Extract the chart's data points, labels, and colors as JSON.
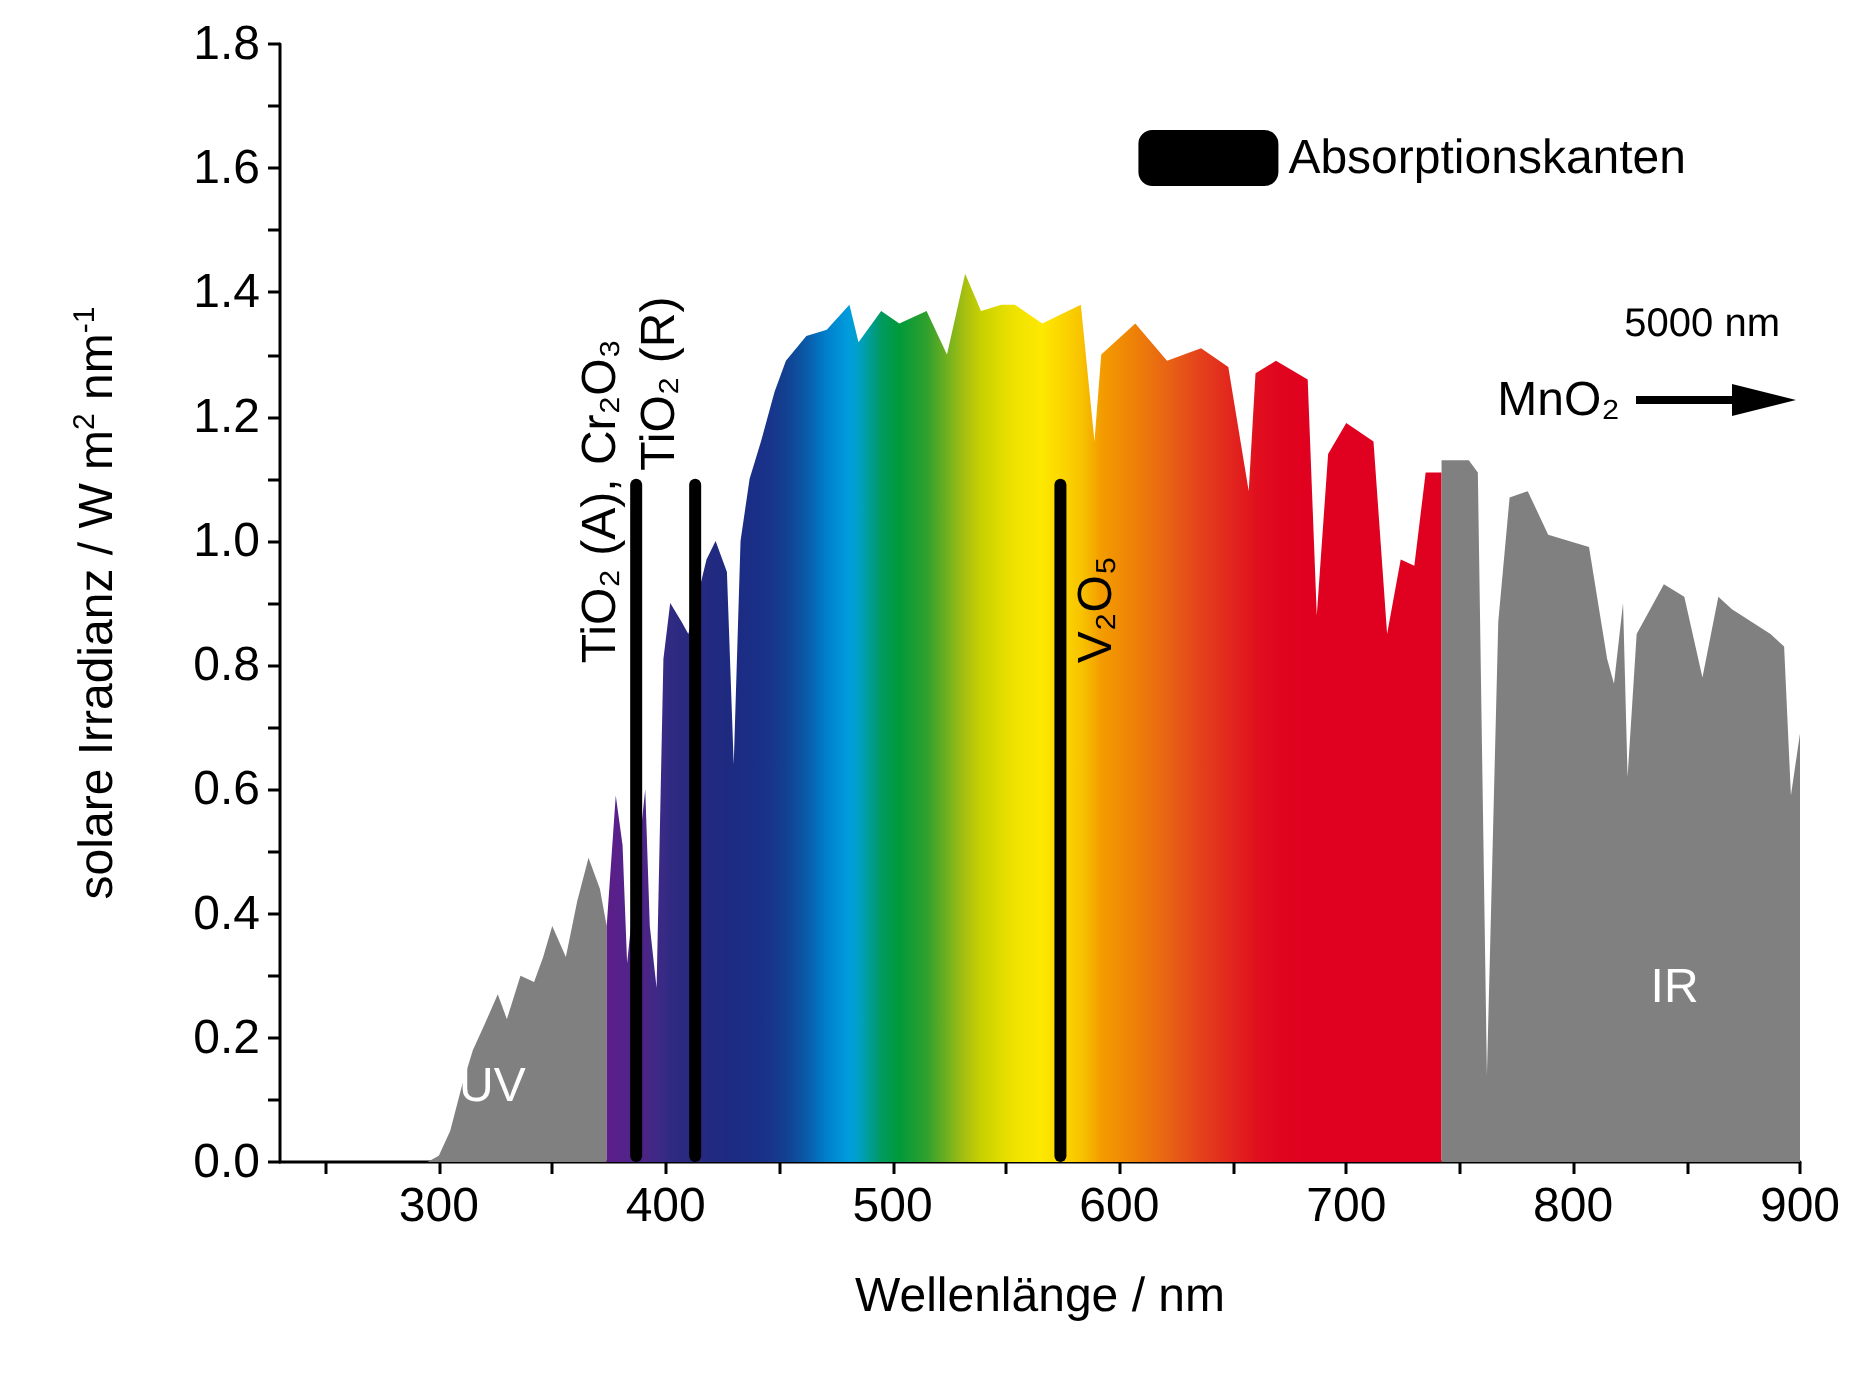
{
  "chart_data": {
    "type": "area",
    "xlabel": "Wellenlänge / nm",
    "ylabel": "solare Irradianz / W m$^{2}$ nm$^{-1}$",
    "xlim": [
      230,
      900
    ],
    "xticks": [
      {
        "value": 250,
        "label": null
      },
      300,
      {
        "value": 350,
        "label": null
      },
      400,
      {
        "value": 450,
        "label": null
      },
      500,
      {
        "value": 550,
        "label": null
      },
      600,
      {
        "value": 650,
        "label": null
      },
      700,
      {
        "value": 750,
        "label": null
      },
      800,
      {
        "value": 850,
        "label": null
      },
      900
    ],
    "ylim": [
      0,
      1.8
    ],
    "yticks": [
      {
        "value": 0,
        "label": "0.0"
      },
      {
        "value": 0.1,
        "label": null
      },
      0.2,
      {
        "value": 0.3,
        "label": null
      },
      0.4,
      {
        "value": 0.5,
        "label": null
      },
      0.6,
      {
        "value": 0.7,
        "label": null
      },
      0.8,
      {
        "value": 0.9,
        "label": null
      },
      {
        "value": 1,
        "label": "1.0"
      },
      {
        "value": 1.1,
        "label": null
      },
      1.2,
      {
        "value": 1.3,
        "label": null
      },
      1.4,
      {
        "value": 1.5,
        "label": null
      },
      1.6,
      {
        "value": 1.7,
        "label": null
      },
      1.8
    ],
    "legend": "top right",
    "series": [
      {
        "name": "UV",
        "color": "#808080",
        "x": [
          230,
          295,
          300,
          305,
          310,
          315,
          320,
          326,
          330,
          336,
          342,
          346,
          350,
          356,
          361,
          366,
          371,
          374
        ],
        "values": [
          0,
          0,
          0.01,
          0.05,
          0.12,
          0.18,
          0.22,
          0.27,
          0.23,
          0.3,
          0.29,
          0.33,
          0.38,
          0.33,
          0.42,
          0.49,
          0.44,
          0.38
        ]
      },
      {
        "x": [
          374,
          378,
          381,
          383,
          391,
          393,
          396,
          399,
          402,
          407,
          410,
          416,
          418,
          422,
          427,
          430,
          433,
          437,
          442,
          448,
          453,
          462,
          471,
          481,
          485,
          495,
          503,
          515,
          524,
          532,
          539,
          548,
          554,
          566,
          583,
          589,
          592,
          607,
          621,
          636,
          648,
          657,
          660,
          669,
          683,
          687,
          692,
          700,
          712,
          718,
          724,
          730,
          735,
          742
        ],
        "values": [
          0.38,
          0.59,
          0.51,
          0.32,
          0.6,
          0.38,
          0.28,
          0.81,
          0.9,
          0.87,
          0.85,
          0.94,
          0.97,
          1.0,
          0.95,
          0.64,
          1.0,
          1.1,
          1.16,
          1.24,
          1.29,
          1.33,
          1.34,
          1.38,
          1.32,
          1.37,
          1.35,
          1.37,
          1.3,
          1.43,
          1.37,
          1.38,
          1.38,
          1.35,
          1.38,
          1.16,
          1.3,
          1.35,
          1.29,
          1.31,
          1.28,
          1.08,
          1.27,
          1.29,
          1.26,
          0.88,
          1.14,
          1.19,
          1.16,
          0.85,
          0.97,
          0.96,
          1.11,
          1.11
        ],
        "colors": [
          "#5b1f86",
          "#58208a",
          "#55228a",
          "#522388",
          "#4c2486",
          "#452785",
          "#402885",
          "#382a85",
          "#302a82",
          "#2b2a80",
          "#282a80",
          "#262a80",
          "#232a80",
          "#202a80",
          "#1e2a80",
          "#1d2b82",
          "#1c2c84",
          "#1b2e86",
          "#1a3088",
          "#17388c",
          "#124090",
          "#0a5aa8",
          "#0080cc",
          "#009ddc",
          "#00a0c8",
          "#009a60",
          "#009a3a",
          "#30a02e",
          "#70b020",
          "#a8c010",
          "#c8d000",
          "#e0dc00",
          "#f0e200",
          "#fde800",
          "#f8c400",
          "#f5aa00",
          "#f39c00",
          "#ee8008",
          "#e86414",
          "#e4401c",
          "#e2281e",
          "#e1181e",
          "#e0101e",
          "#e0061f",
          "#e0001f",
          "#e0001f",
          "#e0001f",
          "#e0001f",
          "#e0001f",
          "#e0001f",
          "#e0001f",
          "#e0001f",
          "#e0001f",
          "#e0001f"
        ]
      },
      {
        "name": "IR",
        "color": "#808080",
        "x": [
          742,
          754,
          758,
          762,
          767,
          772,
          780,
          789,
          807,
          815,
          818,
          822,
          824,
          828,
          840,
          849,
          857,
          864,
          870,
          887,
          893,
          896,
          900
        ],
        "values": [
          1.13,
          1.13,
          1.11,
          0.14,
          0.87,
          1.07,
          1.08,
          1.01,
          0.99,
          0.81,
          0.77,
          0.9,
          0.62,
          0.85,
          0.93,
          0.91,
          0.78,
          0.91,
          0.89,
          0.85,
          0.83,
          0.59,
          0.69
        ]
      },
      {
        "type": "bar",
        "name": "Absorptionskanten",
        "color": "#000000",
        "x": [
          387,
          413,
          574
        ],
        "values": [
          1.1,
          1.1,
          1.1
        ]
      }
    ],
    "annotations": [
      "TiO₂ (A), Cr₂O₃",
      "TiO₂ (R)",
      "V₂O₅",
      "5000 nm",
      "MnO₂"
    ]
  }
}
